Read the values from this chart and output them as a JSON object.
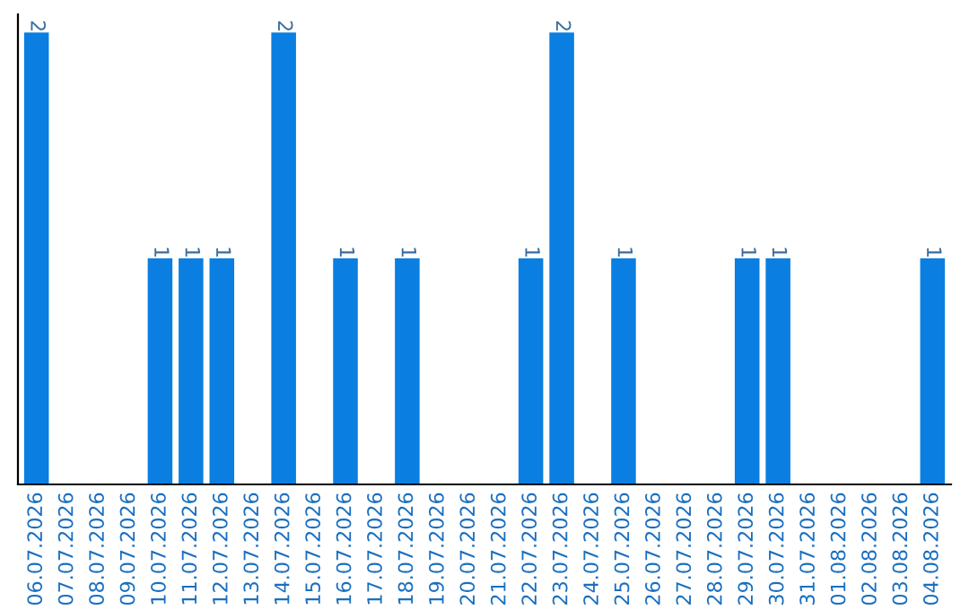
{
  "chart_data": {
    "type": "bar",
    "categories": [
      "06.07.2026",
      "07.07.2026",
      "08.07.2026",
      "09.07.2026",
      "10.07.2026",
      "11.07.2026",
      "12.07.2026",
      "13.07.2026",
      "14.07.2026",
      "15.07.2026",
      "16.07.2026",
      "17.07.2026",
      "18.07.2026",
      "19.07.2026",
      "20.07.2026",
      "21.07.2026",
      "22.07.2026",
      "23.07.2026",
      "24.07.2026",
      "25.07.2026",
      "26.07.2026",
      "27.07.2026",
      "28.07.2026",
      "29.07.2026",
      "30.07.2026",
      "31.07.2026",
      "01.08.2026",
      "02.08.2026",
      "03.08.2026",
      "04.08.2026"
    ],
    "values": [
      2,
      0,
      0,
      0,
      1,
      1,
      1,
      0,
      2,
      0,
      1,
      0,
      1,
      0,
      0,
      0,
      1,
      2,
      0,
      1,
      0,
      0,
      0,
      1,
      1,
      0,
      0,
      0,
      0,
      1
    ],
    "value_labels": [
      "2",
      null,
      null,
      null,
      "1",
      "1",
      "1",
      null,
      "2",
      null,
      "1",
      null,
      "1",
      null,
      null,
      null,
      "1",
      "2",
      null,
      "1",
      null,
      null,
      null,
      "1",
      "1",
      null,
      null,
      null,
      null,
      "1"
    ],
    "color": "#0a7fe1",
    "grid": false,
    "legend": false,
    "tick_labels": "x"
  }
}
